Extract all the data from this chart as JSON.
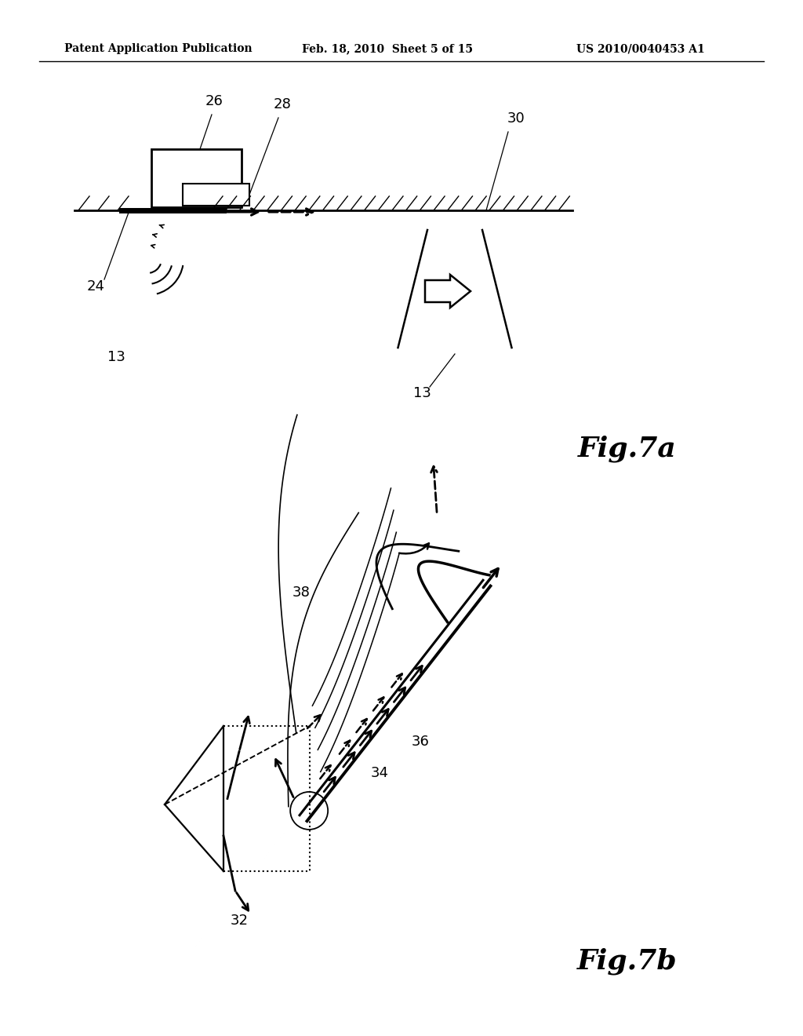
{
  "bg_color": "#ffffff",
  "header_left": "Patent Application Publication",
  "header_mid": "Feb. 18, 2010  Sheet 5 of 15",
  "header_right": "US 2010/0040453 A1",
  "fig7a_label": "Fig.7a",
  "fig7b_label": "Fig.7b",
  "labels": {
    "13a": "13",
    "13b": "13",
    "24": "24",
    "26": "26",
    "28": "28",
    "30": "30",
    "32": "32",
    "34": "34",
    "36": "36",
    "38": "38"
  }
}
